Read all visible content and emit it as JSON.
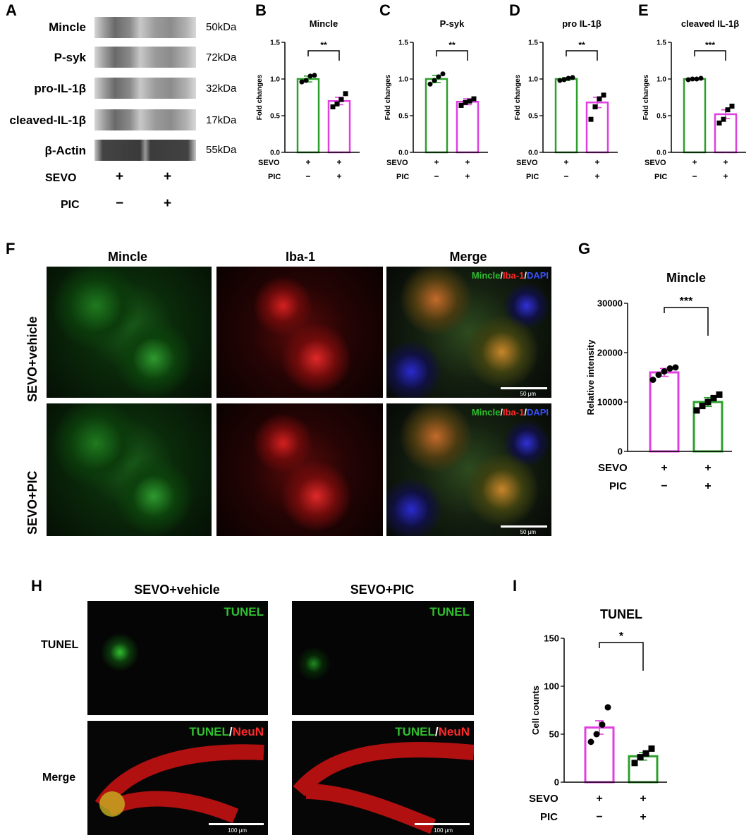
{
  "panel_letters": {
    "A": "A",
    "B": "B",
    "C": "C",
    "D": "D",
    "E": "E",
    "F": "F",
    "G": "G",
    "H": "H",
    "I": "I"
  },
  "western_blot": {
    "rows": [
      {
        "label": "Mincle",
        "kda": "50kDa"
      },
      {
        "label": "P-syk",
        "kda": "72kDa"
      },
      {
        "label": "pro-IL-1β",
        "kda": "32kDa"
      },
      {
        "label": "cleaved-IL-1β",
        "kda": "17kDa"
      },
      {
        "label": "β-Actin",
        "kda": "55kDa"
      }
    ],
    "conditions": [
      {
        "name": "SEVO",
        "lane1": "+",
        "lane2": "+"
      },
      {
        "name": "PIC",
        "lane1": "−",
        "lane2": "+"
      }
    ]
  },
  "panel_f": {
    "columns": [
      "Mincle",
      "Iba-1",
      "Merge"
    ],
    "rows": [
      "SEVO+vehicle",
      "SEVO+PIC"
    ],
    "overlay": {
      "a": "Mincle",
      "sep1": "/",
      "b": "Iba-1",
      "sep2": "/",
      "c": "DAPI"
    },
    "scale": "50 μm"
  },
  "panel_h": {
    "columns": [
      "SEVO+vehicle",
      "SEVO+PIC"
    ],
    "rows": [
      "TUNEL",
      "Merge"
    ],
    "overlay_top": "TUNEL",
    "overlay_bottom": {
      "a": "TUNEL",
      "sep": "/",
      "b": "NeuN"
    },
    "scale": "100 μm"
  },
  "colors": {
    "green": "#2ca02c",
    "magenta": "#e040e0",
    "black": "#000000"
  },
  "chart_data": [
    {
      "panel": "B",
      "type": "bar",
      "title": "Mincle",
      "ylabel": "Fold changes",
      "ylim": [
        0,
        1.5
      ],
      "yticks": [
        "0.0",
        "0.5",
        "1.0",
        "1.5"
      ],
      "cond_labels": [
        "SEVO",
        "PIC"
      ],
      "conds": [
        [
          "+",
          "−"
        ],
        [
          "+",
          "+"
        ]
      ],
      "bars": [
        {
          "value": 1.0,
          "err": 0.04,
          "color": "green",
          "points": [
            0.96,
            0.98,
            1.04,
            1.05
          ]
        },
        {
          "value": 0.7,
          "err": 0.05,
          "color": "magenta",
          "points": [
            0.62,
            0.66,
            0.72,
            0.8
          ]
        }
      ],
      "sig": "**"
    },
    {
      "panel": "C",
      "type": "bar",
      "title": "P-syk",
      "ylabel": "Fold changes",
      "ylim": [
        0,
        1.5
      ],
      "yticks": [
        "0.0",
        "0.5",
        "1.0",
        "1.5"
      ],
      "cond_labels": [
        "SEVO",
        "PIC"
      ],
      "conds": [
        [
          "+",
          "−"
        ],
        [
          "+",
          "+"
        ]
      ],
      "bars": [
        {
          "value": 1.0,
          "err": 0.05,
          "color": "green",
          "points": [
            0.93,
            0.98,
            1.03,
            1.07
          ]
        },
        {
          "value": 0.69,
          "err": 0.04,
          "color": "magenta",
          "points": [
            0.64,
            0.68,
            0.7,
            0.73
          ]
        }
      ],
      "sig": "**"
    },
    {
      "panel": "D",
      "type": "bar",
      "title": "pro IL-1β",
      "ylabel": "Fold changes",
      "ylim": [
        0,
        1.5
      ],
      "yticks": [
        "0.0",
        "0.5",
        "1.0",
        "1.5"
      ],
      "cond_labels": [
        "SEVO",
        "PIC"
      ],
      "conds": [
        [
          "+",
          "−"
        ],
        [
          "+",
          "+"
        ]
      ],
      "bars": [
        {
          "value": 1.0,
          "err": 0.02,
          "color": "green",
          "points": [
            0.98,
            0.99,
            1.01,
            1.02
          ]
        },
        {
          "value": 0.68,
          "err": 0.07,
          "color": "magenta",
          "points": [
            0.45,
            0.62,
            0.73,
            0.78
          ]
        }
      ],
      "sig": "**"
    },
    {
      "panel": "E",
      "type": "bar",
      "title": "cleaved IL-1β",
      "ylabel": "Fold changes",
      "ylim": [
        0,
        1.5
      ],
      "yticks": [
        "0.0",
        "0.5",
        "1.0",
        "1.5"
      ],
      "cond_labels": [
        "SEVO",
        "PIC"
      ],
      "conds": [
        [
          "+",
          "−"
        ],
        [
          "+",
          "+"
        ]
      ],
      "bars": [
        {
          "value": 1.0,
          "err": 0.01,
          "color": "green",
          "points": [
            0.99,
            1.0,
            1.0,
            1.01
          ]
        },
        {
          "value": 0.52,
          "err": 0.06,
          "color": "magenta",
          "points": [
            0.4,
            0.45,
            0.58,
            0.63
          ]
        }
      ],
      "sig": "***"
    },
    {
      "panel": "G",
      "type": "bar",
      "title": "Mincle",
      "ylabel": "Relative intensity",
      "ylim": [
        0,
        30000
      ],
      "yticks": [
        "0",
        "10000",
        "20000",
        "30000"
      ],
      "cond_labels": [
        "SEVO",
        "PIC"
      ],
      "conds": [
        [
          "+",
          "−"
        ],
        [
          "+",
          "+"
        ]
      ],
      "bars": [
        {
          "value": 16000,
          "err": 800,
          "color": "magenta",
          "points": [
            14500,
            15500,
            16200,
            16800,
            17000
          ]
        },
        {
          "value": 10000,
          "err": 900,
          "color": "green",
          "points": [
            8300,
            9200,
            10000,
            10800,
            11500
          ]
        }
      ],
      "sig": "***"
    },
    {
      "panel": "I",
      "type": "bar",
      "title": "TUNEL",
      "ylabel": "Cell  counts",
      "ylim": [
        0,
        150
      ],
      "yticks": [
        "0",
        "50",
        "100",
        "150"
      ],
      "cond_labels": [
        "SEVO",
        "PIC"
      ],
      "conds": [
        [
          "+",
          "−"
        ],
        [
          "+",
          "+"
        ]
      ],
      "bars": [
        {
          "value": 57,
          "err": 7,
          "color": "magenta",
          "points": [
            42,
            50,
            60,
            78
          ]
        },
        {
          "value": 27,
          "err": 4,
          "color": "green",
          "points": [
            20,
            26,
            30,
            35
          ]
        }
      ],
      "sig": "*"
    }
  ]
}
